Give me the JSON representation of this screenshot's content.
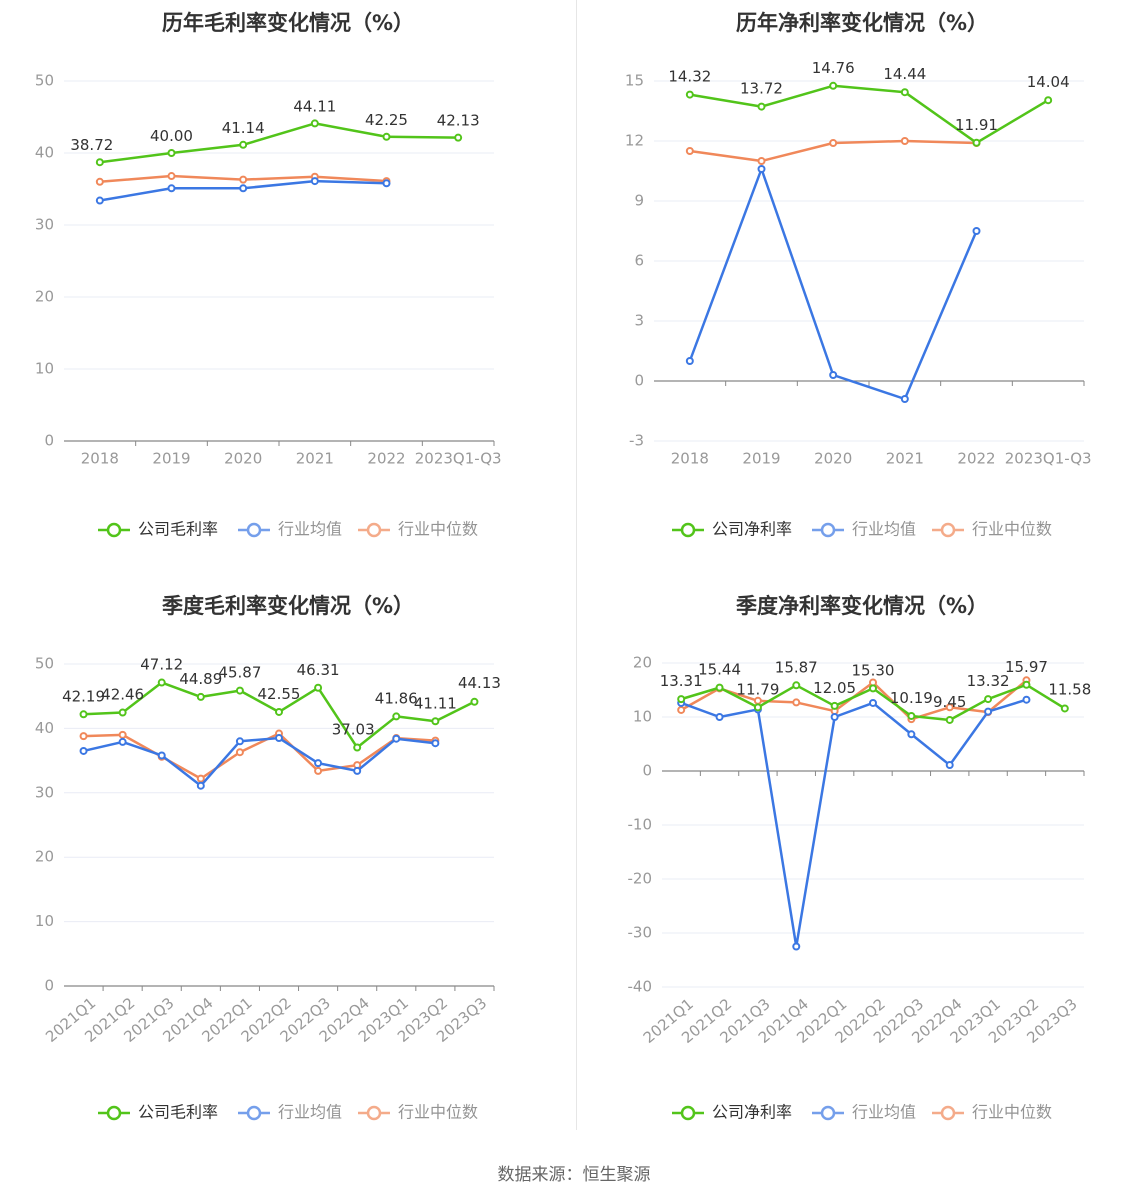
{
  "source": "数据来源：恒生聚源",
  "colors": {
    "company": "#52c41a",
    "industry_avg": "#3b77e3",
    "industry_median": "#f0885a",
    "axis": "#999999",
    "grid": "#e9ecf5",
    "label": "#333333"
  },
  "chart_data": [
    {
      "type": "line",
      "title": "历年毛利率变化情况（%）",
      "categories": [
        "2018",
        "2019",
        "2020",
        "2021",
        "2022",
        "2023Q1-Q3"
      ],
      "ylim": [
        0,
        50
      ],
      "yticks": [
        0,
        10,
        20,
        30,
        40,
        50
      ],
      "ytick_labels": [
        "0",
        "10",
        "20",
        "30",
        "40",
        "50"
      ],
      "xlabel_rotate": false,
      "legend": [
        "公司毛利率",
        "行业均值",
        "行业中位数"
      ],
      "series": [
        {
          "name": "公司毛利率",
          "key": "company",
          "values": [
            38.72,
            40.0,
            41.14,
            44.11,
            42.25,
            42.13
          ],
          "labels": [
            "38.72",
            "40.00",
            "41.14",
            "44.11",
            "42.25",
            "42.13"
          ]
        },
        {
          "name": "行业均值",
          "key": "industry_avg",
          "values": [
            33.4,
            35.1,
            35.1,
            36.1,
            35.8,
            null
          ]
        },
        {
          "name": "行业中位数",
          "key": "industry_median",
          "values": [
            36.0,
            36.8,
            36.3,
            36.7,
            36.1,
            null
          ]
        }
      ]
    },
    {
      "type": "line",
      "title": "历年净利率变化情况（%）",
      "categories": [
        "2018",
        "2019",
        "2020",
        "2021",
        "2022",
        "2023Q1-Q3"
      ],
      "ylim": [
        -3,
        15
      ],
      "yticks": [
        -3,
        0,
        3,
        6,
        9,
        12,
        15
      ],
      "ytick_labels": [
        "-3",
        "0",
        "3",
        "6",
        "9",
        "12",
        "15"
      ],
      "xlabel_rotate": false,
      "legend": [
        "公司净利率",
        "行业均值",
        "行业中位数"
      ],
      "series": [
        {
          "name": "公司净利率",
          "key": "company",
          "values": [
            14.32,
            13.72,
            14.76,
            14.44,
            11.91,
            14.04
          ],
          "labels": [
            "14.32",
            "13.72",
            "14.76",
            "14.44",
            "11.91",
            "14.04"
          ]
        },
        {
          "name": "行业均值",
          "key": "industry_avg",
          "values": [
            1.0,
            10.6,
            0.3,
            -0.9,
            7.5,
            null
          ]
        },
        {
          "name": "行业中位数",
          "key": "industry_median",
          "values": [
            11.5,
            11.0,
            11.9,
            12.0,
            11.9,
            null
          ]
        }
      ]
    },
    {
      "type": "line",
      "title": "季度毛利率变化情况（%）",
      "categories": [
        "2021Q1",
        "2021Q2",
        "2021Q3",
        "2021Q4",
        "2022Q1",
        "2022Q2",
        "2022Q3",
        "2022Q4",
        "2023Q1",
        "2023Q2",
        "2023Q3"
      ],
      "ylim": [
        0,
        50
      ],
      "yticks": [
        0,
        10,
        20,
        30,
        40,
        50
      ],
      "ytick_labels": [
        "0",
        "10",
        "20",
        "30",
        "40",
        "50"
      ],
      "xlabel_rotate": true,
      "legend": [
        "公司毛利率",
        "行业均值",
        "行业中位数"
      ],
      "series": [
        {
          "name": "公司毛利率",
          "key": "company",
          "values": [
            42.19,
            42.46,
            47.12,
            44.89,
            45.87,
            42.55,
            46.31,
            37.03,
            41.86,
            41.11,
            44.13
          ],
          "labels": [
            "42.19",
            "42.46",
            "47.12",
            "44.89",
            "45.87",
            "42.55",
            "46.31",
            "37.03",
            "41.86",
            "41.11",
            "44.13"
          ]
        },
        {
          "name": "行业均值",
          "key": "industry_avg",
          "values": [
            36.5,
            37.9,
            35.8,
            31.1,
            38.0,
            38.5,
            34.6,
            33.4,
            38.4,
            37.7,
            null
          ]
        },
        {
          "name": "行业中位数",
          "key": "industry_median",
          "values": [
            38.8,
            39.0,
            35.6,
            32.2,
            36.3,
            39.2,
            33.4,
            34.3,
            38.5,
            38.1,
            null
          ]
        }
      ]
    },
    {
      "type": "line",
      "title": "季度净利率变化情况（%）",
      "categories": [
        "2021Q1",
        "2021Q2",
        "2021Q3",
        "2021Q4",
        "2022Q1",
        "2022Q2",
        "2022Q3",
        "2022Q4",
        "2023Q1",
        "2023Q2",
        "2023Q3"
      ],
      "ylim": [
        -40,
        20
      ],
      "yticks": [
        -40,
        -30,
        -20,
        -10,
        0,
        10,
        20
      ],
      "ytick_labels": [
        "-40",
        "-30",
        "-20",
        "-10",
        "0",
        "10",
        "20"
      ],
      "xlabel_rotate": true,
      "legend": [
        "公司净利率",
        "行业均值",
        "行业中位数"
      ],
      "series": [
        {
          "name": "公司净利率",
          "key": "company",
          "values": [
            13.31,
            15.44,
            11.79,
            15.87,
            12.05,
            15.3,
            10.19,
            9.45,
            13.32,
            15.97,
            11.58
          ],
          "labels": [
            "13.31",
            "15.44",
            "11.79",
            "15.87",
            "12.05",
            "15.30",
            "10.19",
            "9.45",
            "13.32",
            "15.97",
            "11.58"
          ]
        },
        {
          "name": "行业均值",
          "key": "industry_avg",
          "values": [
            12.6,
            10.0,
            11.4,
            -32.5,
            10.0,
            12.6,
            6.8,
            1.1,
            11.0,
            13.2,
            null
          ]
        },
        {
          "name": "行业中位数",
          "key": "industry_median",
          "values": [
            11.3,
            15.3,
            13.0,
            12.7,
            11.1,
            16.4,
            9.6,
            11.8,
            10.9,
            16.8,
            null
          ]
        }
      ]
    }
  ]
}
